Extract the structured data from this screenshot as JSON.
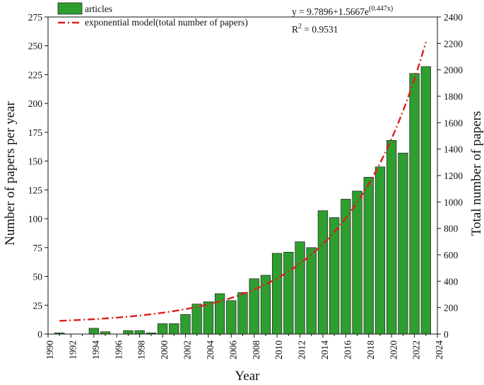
{
  "chart_data": {
    "type": "bar",
    "xlabel": "Year",
    "ylabel": "Number of papers per year",
    "y2label": "Total number of papers",
    "xlim": [
      1990,
      2024
    ],
    "ylim": [
      0,
      275
    ],
    "y2lim": [
      0,
      2400
    ],
    "xticks": [
      1990,
      1992,
      1994,
      1996,
      1998,
      2000,
      2002,
      2004,
      2006,
      2008,
      2010,
      2012,
      2014,
      2016,
      2018,
      2020,
      2022,
      2024
    ],
    "yticks": [
      0,
      25,
      50,
      75,
      100,
      125,
      150,
      175,
      200,
      225,
      250,
      275
    ],
    "y2ticks": [
      0,
      200,
      400,
      600,
      800,
      1000,
      1200,
      1400,
      1600,
      1800,
      2000,
      2200,
      2400
    ],
    "bar_color": "#2e9e2e",
    "line_color": "#dd1e1e",
    "series": [
      {
        "name": "articles",
        "type": "bar",
        "x": [
          1991,
          1994,
          1995,
          1997,
          1998,
          1999,
          2000,
          2001,
          2002,
          2003,
          2004,
          2005,
          2006,
          2007,
          2008,
          2009,
          2010,
          2011,
          2012,
          2013,
          2014,
          2015,
          2016,
          2017,
          2018,
          2019,
          2020,
          2021,
          2022,
          2023
        ],
        "values": [
          1,
          5,
          2,
          3,
          3,
          1,
          9,
          9,
          17,
          26,
          28,
          35,
          29,
          36,
          48,
          51,
          70,
          71,
          80,
          75,
          107,
          101,
          117,
          124,
          136,
          145,
          168,
          157,
          226,
          232
        ]
      },
      {
        "name": "exponential model(total number of papers)",
        "type": "line",
        "axis": "right",
        "x_range": [
          1991,
          2023
        ],
        "y_range": [
          100,
          2210
        ]
      }
    ],
    "annotation": {
      "equation_main": "y = 9.7896+1.5667e",
      "equation_exp": "(0.447x)",
      "r2_base": "R",
      "r2_exp": "2",
      "r2_value": " = 0.9531"
    },
    "legend_position": "top-left"
  }
}
